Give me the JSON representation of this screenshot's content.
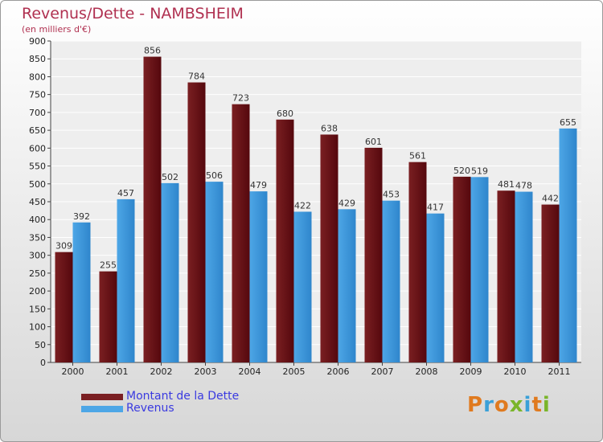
{
  "chart_data": {
    "type": "bar",
    "title": "Revenus/Dette - NAMBSHEIM",
    "subtitle": "(en milliers d'€)",
    "categories": [
      "2000",
      "2001",
      "2002",
      "2003",
      "2004",
      "2005",
      "2006",
      "2007",
      "2008",
      "2009",
      "2010",
      "2011"
    ],
    "series": [
      {
        "name": "Montant de la Dette",
        "color": "#7a1f22",
        "values": [
          309,
          255,
          856,
          784,
          723,
          680,
          638,
          601,
          561,
          520,
          481,
          442
        ]
      },
      {
        "name": "Revenus",
        "color": "#4da6e6",
        "values": [
          392,
          457,
          502,
          506,
          479,
          422,
          429,
          453,
          417,
          519,
          478,
          655
        ]
      }
    ],
    "ylim": [
      0,
      900
    ],
    "yticks": [
      0,
      50,
      100,
      150,
      200,
      250,
      300,
      350,
      400,
      450,
      500,
      550,
      600,
      650,
      700,
      750,
      800,
      850,
      900
    ],
    "grid": true,
    "legend": "bottom-left"
  },
  "logo": {
    "text": "Proxiti",
    "colors": [
      "#e07a1f",
      "#3aa0d8",
      "#e07a1f",
      "#7ab52a",
      "#3aa0d8",
      "#e07a1f",
      "#7ab52a"
    ]
  }
}
